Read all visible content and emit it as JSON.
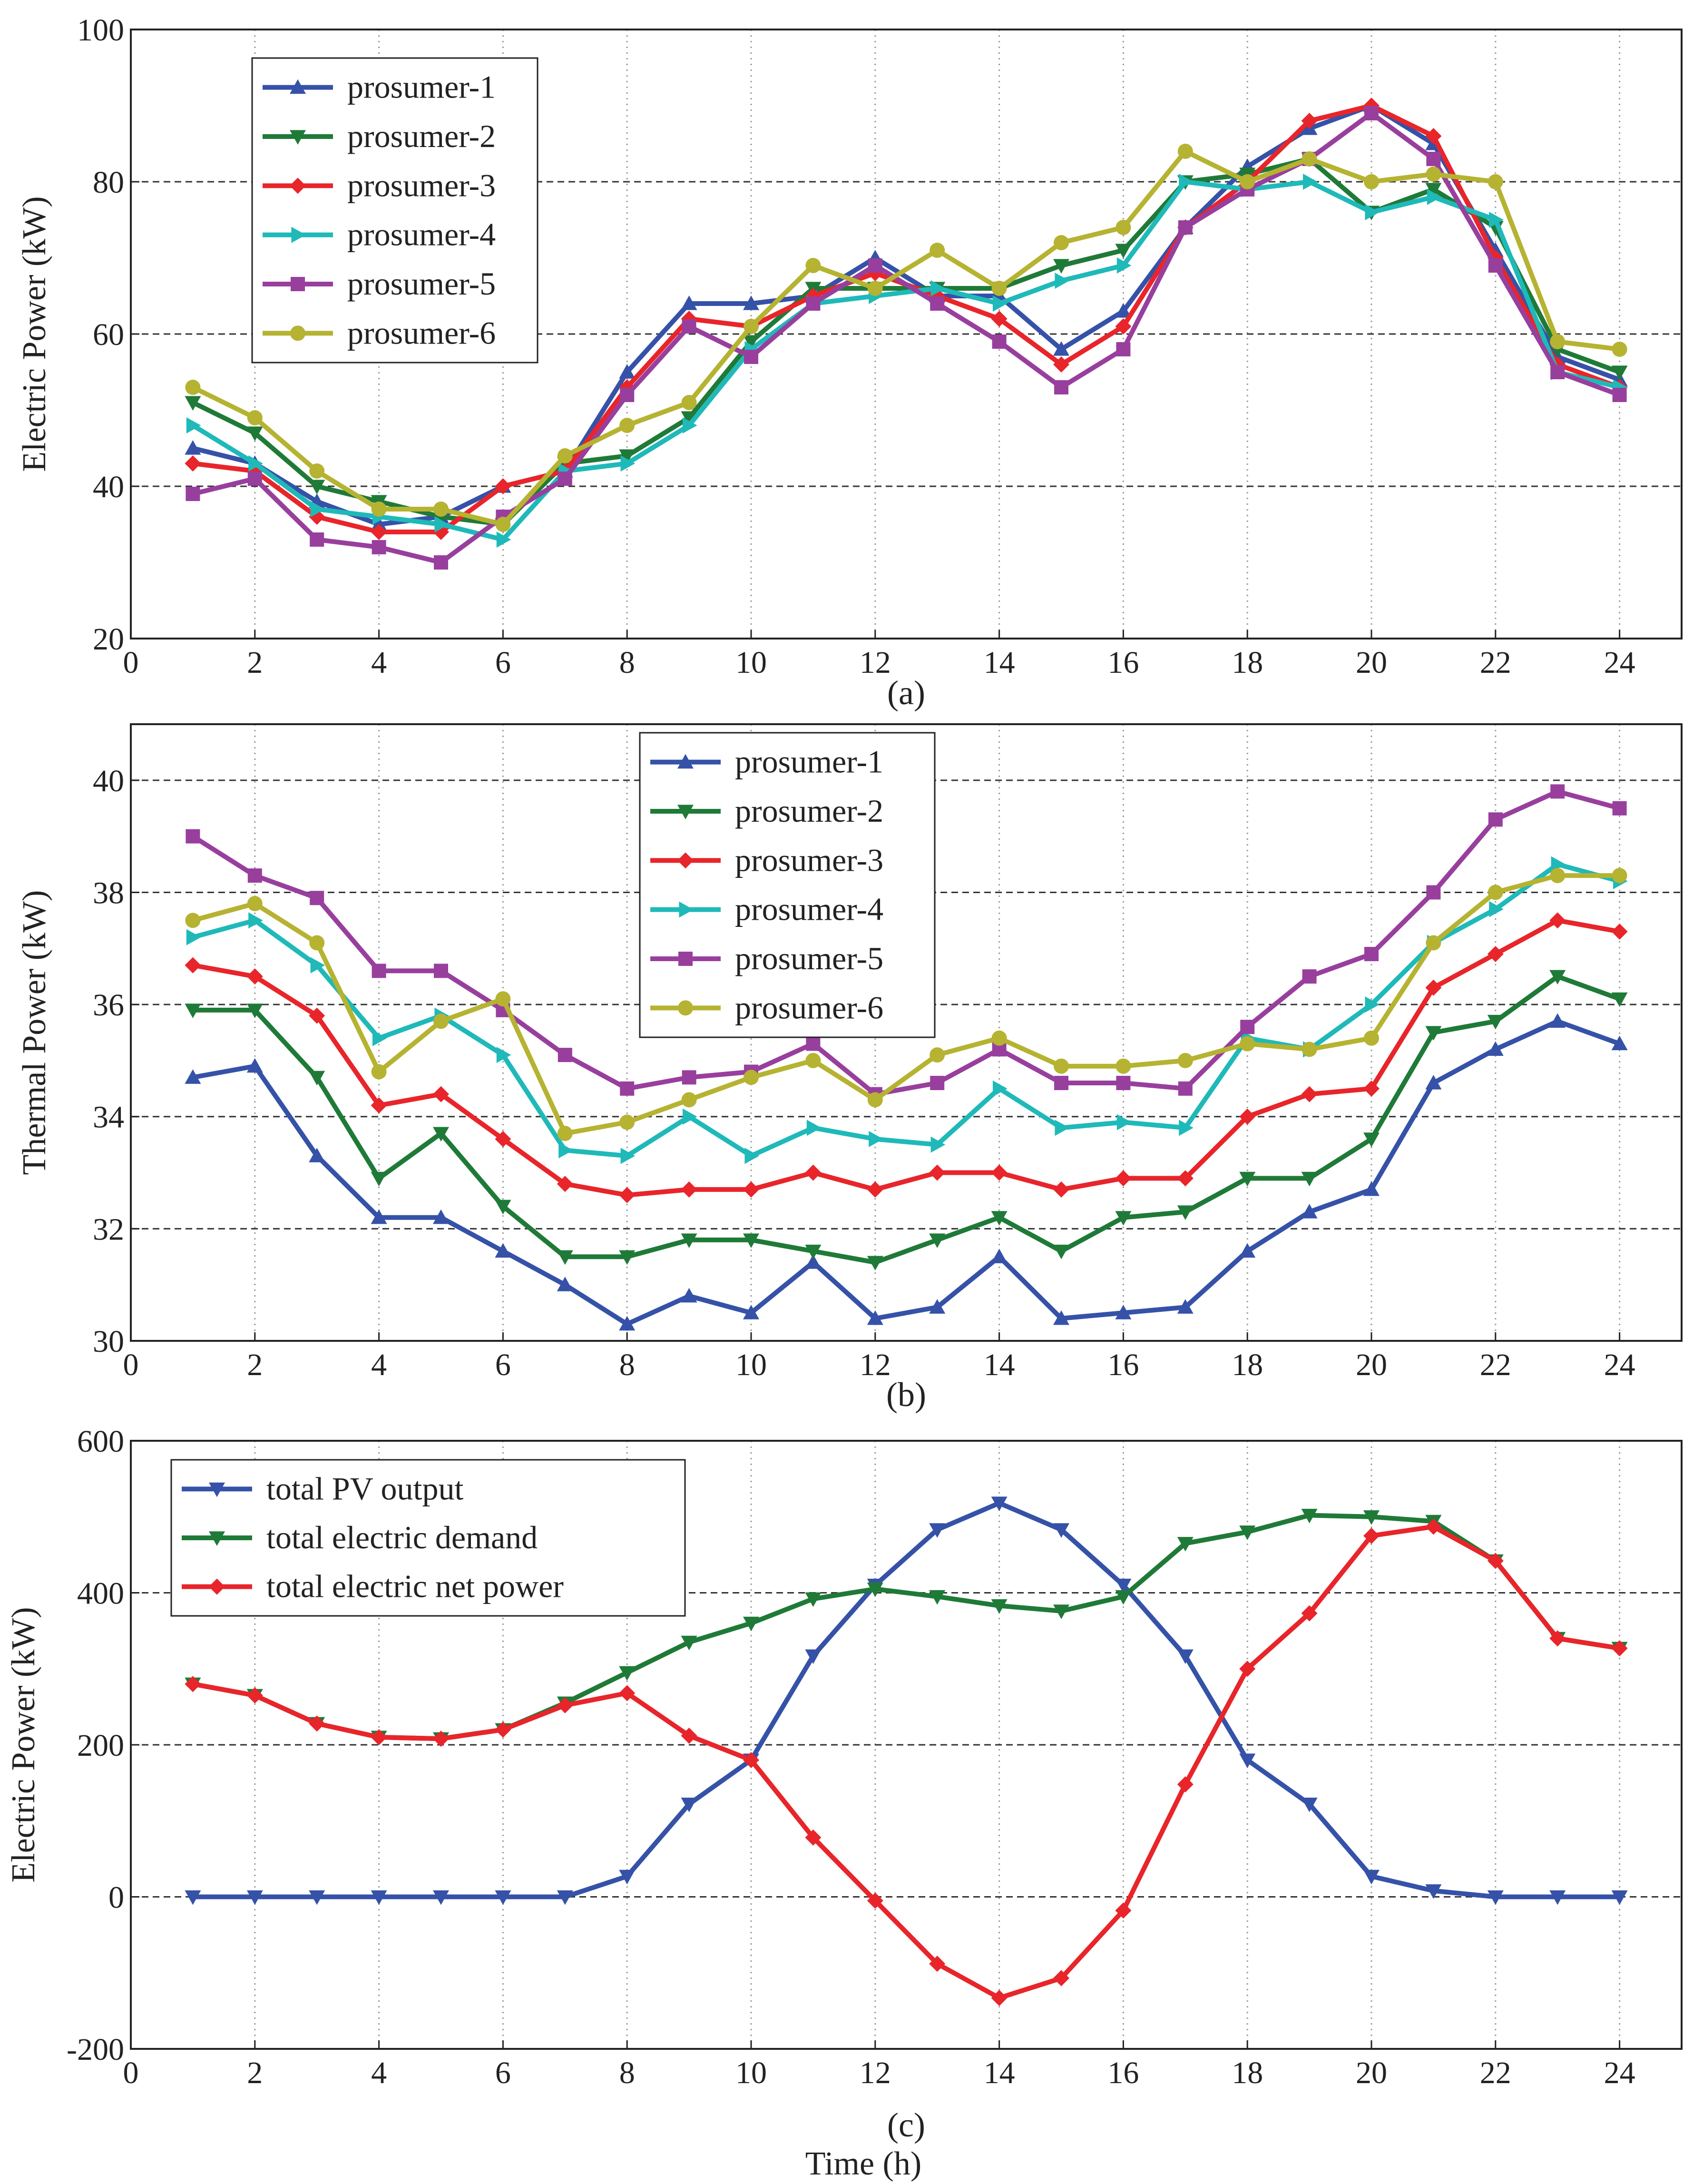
{
  "figure": {
    "xlabel": "Time (h)"
  },
  "chart_data": [
    {
      "type": "line",
      "panel_label": "(a)",
      "ylabel": "Electric Power  (kW)",
      "xlim": [
        0,
        25
      ],
      "ylim": [
        20,
        100
      ],
      "xticks": [
        0,
        2,
        4,
        6,
        8,
        10,
        12,
        14,
        16,
        18,
        20,
        22,
        24
      ],
      "yticks": [
        20,
        40,
        60,
        80,
        100
      ],
      "grid_y": [
        40,
        60,
        80
      ],
      "legend_position": "top-left",
      "x": [
        1,
        2,
        3,
        4,
        5,
        6,
        7,
        8,
        9,
        10,
        11,
        12,
        13,
        14,
        15,
        16,
        17,
        18,
        19,
        20,
        21,
        22,
        23,
        24
      ],
      "series": [
        {
          "name": "prosumer-1",
          "color": "#3552A8",
          "marker": "triangle-up",
          "values": [
            45,
            43,
            38,
            35,
            36,
            40,
            42,
            55,
            64,
            64,
            65,
            70,
            65,
            65,
            58,
            63,
            74,
            82,
            87,
            90,
            85,
            71,
            57,
            54
          ]
        },
        {
          "name": "prosumer-2",
          "color": "#1F7A38",
          "marker": "triangle-down",
          "values": [
            51,
            47,
            40,
            38,
            36,
            35,
            43,
            44,
            49,
            59,
            66,
            66,
            66,
            66,
            69,
            71,
            80,
            81,
            83,
            76,
            79,
            74,
            58,
            55
          ]
        },
        {
          "name": "prosumer-3",
          "color": "#E8252A",
          "marker": "diamond",
          "values": [
            43,
            42,
            36,
            34,
            34,
            40,
            42,
            53,
            62,
            61,
            65,
            68,
            65,
            62,
            56,
            61,
            74,
            80,
            88,
            90,
            86,
            70,
            56,
            53
          ]
        },
        {
          "name": "prosumer-4",
          "color": "#1FB9B9",
          "marker": "triangle-right",
          "values": [
            48,
            43,
            37,
            36,
            35,
            33,
            42,
            43,
            48,
            58,
            64,
            65,
            66,
            64,
            67,
            69,
            80,
            79,
            80,
            76,
            78,
            75,
            55,
            53
          ]
        },
        {
          "name": "prosumer-5",
          "color": "#983F9E",
          "marker": "square",
          "values": [
            39,
            41,
            33,
            32,
            30,
            36,
            41,
            52,
            61,
            57,
            64,
            69,
            64,
            59,
            53,
            58,
            74,
            79,
            83,
            89,
            83,
            69,
            55,
            52
          ]
        },
        {
          "name": "prosumer-6",
          "color": "#B5B331",
          "marker": "circle",
          "values": [
            53,
            49,
            42,
            37,
            37,
            35,
            44,
            48,
            51,
            61,
            69,
            66,
            71,
            66,
            72,
            74,
            84,
            80,
            83,
            80,
            81,
            80,
            59,
            58
          ]
        }
      ]
    },
    {
      "type": "line",
      "panel_label": "(b)",
      "ylabel": "Thermal Power (kW)",
      "xlim": [
        0,
        25
      ],
      "ylim": [
        30,
        41
      ],
      "xticks": [
        0,
        2,
        4,
        6,
        8,
        10,
        12,
        14,
        16,
        18,
        20,
        22,
        24
      ],
      "yticks": [
        30,
        32,
        34,
        36,
        38,
        40
      ],
      "grid_y": [
        32,
        34,
        36,
        38,
        40
      ],
      "legend_position": "top-center",
      "x": [
        1,
        2,
        3,
        4,
        5,
        6,
        7,
        8,
        9,
        10,
        11,
        12,
        13,
        14,
        15,
        16,
        17,
        18,
        19,
        20,
        21,
        22,
        23,
        24
      ],
      "series": [
        {
          "name": "prosumer-1",
          "color": "#3552A8",
          "marker": "triangle-up",
          "values": [
            34.7,
            34.9,
            33.3,
            32.2,
            32.2,
            31.6,
            31.0,
            30.3,
            30.8,
            30.5,
            31.4,
            30.4,
            30.6,
            31.5,
            30.4,
            30.5,
            30.6,
            31.6,
            32.3,
            32.7,
            34.6,
            35.2,
            35.7,
            35.3
          ]
        },
        {
          "name": "prosumer-2",
          "color": "#1F7A38",
          "marker": "triangle-down",
          "values": [
            35.9,
            35.9,
            34.7,
            32.9,
            33.7,
            32.4,
            31.5,
            31.5,
            31.8,
            31.8,
            31.6,
            31.4,
            31.8,
            32.2,
            31.6,
            32.2,
            32.3,
            32.9,
            32.9,
            33.6,
            35.5,
            35.7,
            36.5,
            36.1
          ]
        },
        {
          "name": "prosumer-3",
          "color": "#E8252A",
          "marker": "diamond",
          "values": [
            36.7,
            36.5,
            35.8,
            34.2,
            34.4,
            33.6,
            32.8,
            32.6,
            32.7,
            32.7,
            33.0,
            32.7,
            33.0,
            33.0,
            32.7,
            32.9,
            32.9,
            34.0,
            34.4,
            34.5,
            36.3,
            36.9,
            37.5,
            37.3
          ]
        },
        {
          "name": "prosumer-4",
          "color": "#1FB9B9",
          "marker": "triangle-right",
          "values": [
            37.2,
            37.5,
            36.7,
            35.4,
            35.8,
            35.1,
            33.4,
            33.3,
            34.0,
            33.3,
            33.8,
            33.6,
            33.5,
            34.5,
            33.8,
            33.9,
            33.8,
            35.4,
            35.2,
            36.0,
            37.1,
            37.7,
            38.5,
            38.2
          ]
        },
        {
          "name": "prosumer-5",
          "color": "#983F9E",
          "marker": "square",
          "values": [
            39.0,
            38.3,
            37.9,
            36.6,
            36.6,
            35.9,
            35.1,
            34.5,
            34.7,
            34.8,
            35.3,
            34.4,
            34.6,
            35.2,
            34.6,
            34.6,
            34.5,
            35.6,
            36.5,
            36.9,
            38.0,
            39.3,
            39.8,
            39.5
          ]
        },
        {
          "name": "prosumer-6",
          "color": "#B5B331",
          "marker": "circle",
          "values": [
            37.5,
            37.8,
            37.1,
            34.8,
            35.7,
            36.1,
            33.7,
            33.9,
            34.3,
            34.7,
            35.0,
            34.3,
            35.1,
            35.4,
            34.9,
            34.9,
            35.0,
            35.3,
            35.2,
            35.4,
            37.1,
            38.0,
            38.3,
            38.3
          ]
        }
      ]
    },
    {
      "type": "line",
      "panel_label": "(c)",
      "ylabel": "Electric Power  (kW)",
      "xlim": [
        0,
        25
      ],
      "ylim": [
        -200,
        600
      ],
      "xticks": [
        0,
        2,
        4,
        6,
        8,
        10,
        12,
        14,
        16,
        18,
        20,
        22,
        24
      ],
      "yticks": [
        -200,
        0,
        200,
        400,
        600
      ],
      "grid_y": [
        0,
        200,
        400
      ],
      "legend_position": "top-left",
      "x": [
        1,
        2,
        3,
        4,
        5,
        6,
        7,
        8,
        9,
        10,
        11,
        12,
        13,
        14,
        15,
        16,
        17,
        18,
        19,
        20,
        21,
        22,
        23,
        24
      ],
      "series": [
        {
          "name": "total PV output",
          "color": "#3552A8",
          "marker": "triangle-down",
          "values": [
            0,
            0,
            0,
            0,
            0,
            0,
            0,
            27,
            122,
            180,
            317,
            410,
            483,
            518,
            483,
            410,
            317,
            180,
            122,
            27,
            8,
            0,
            0,
            0
          ]
        },
        {
          "name": "total electric demand",
          "color": "#1F7A38",
          "marker": "triangle-down",
          "values": [
            280,
            265,
            228,
            210,
            208,
            220,
            255,
            295,
            335,
            360,
            392,
            405,
            395,
            383,
            376,
            395,
            465,
            480,
            502,
            500,
            494,
            442,
            340,
            327
          ]
        },
        {
          "name": "total electric net power",
          "color": "#E8252A",
          "marker": "diamond",
          "values": [
            280,
            265,
            228,
            210,
            208,
            220,
            252,
            268,
            212,
            180,
            78,
            -5,
            -88,
            -133,
            -107,
            -18,
            148,
            300,
            373,
            475,
            487,
            442,
            340,
            327
          ]
        }
      ]
    }
  ]
}
